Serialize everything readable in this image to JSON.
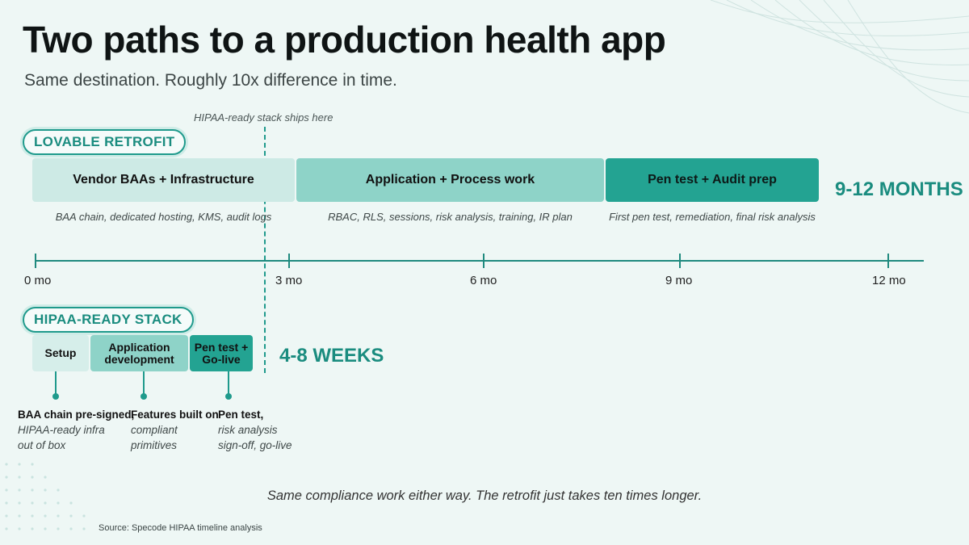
{
  "title": "Two paths to a production health app",
  "subtitle": "Same destination. Roughly 10x difference in time.",
  "marker_label": "HIPAA-ready stack ships here",
  "retrofit": {
    "pill": "LOVABLE RETROFIT",
    "phases": [
      {
        "label": "Vendor BAAs + Infrastructure",
        "desc": "BAA chain, dedicated hosting, KMS, audit logs"
      },
      {
        "label": "Application + Process work",
        "desc": "RBAC, RLS, sessions, risk analysis, training, IR plan"
      },
      {
        "label": "Pen test + Audit prep",
        "desc": "First pen test, remediation, final risk analysis"
      }
    ],
    "duration": "9-12 MONTHS"
  },
  "axis": {
    "ticks": [
      "0 mo",
      "3 mo",
      "6 mo",
      "9 mo",
      "12 mo"
    ]
  },
  "stack": {
    "pill": "HIPAA-READY STACK",
    "phases": [
      {
        "label": "Setup"
      },
      {
        "label": "Application development"
      },
      {
        "label": "Pen test + Go-live"
      }
    ],
    "duration": "4-8 WEEKS",
    "notes": [
      {
        "head": "BAA chain pre-signed,",
        "body1": "HIPAA-ready infra",
        "body2": "out of box"
      },
      {
        "head": "Features built on",
        "body1": "compliant",
        "body2": "primitives"
      },
      {
        "head": "Pen test,",
        "body1": "risk analysis",
        "body2": "sign-off, go-live"
      }
    ]
  },
  "footer_note": "Same compliance work either way. The retrofit just takes ten times longer.",
  "source": "Source: Specode HIPAA timeline analysis",
  "colors": {
    "accent": "#1f9a8c",
    "background": "#eef7f5",
    "phase_light": "#cdeae5",
    "phase_mid": "#8ed3c8",
    "phase_dark": "#23a392"
  }
}
